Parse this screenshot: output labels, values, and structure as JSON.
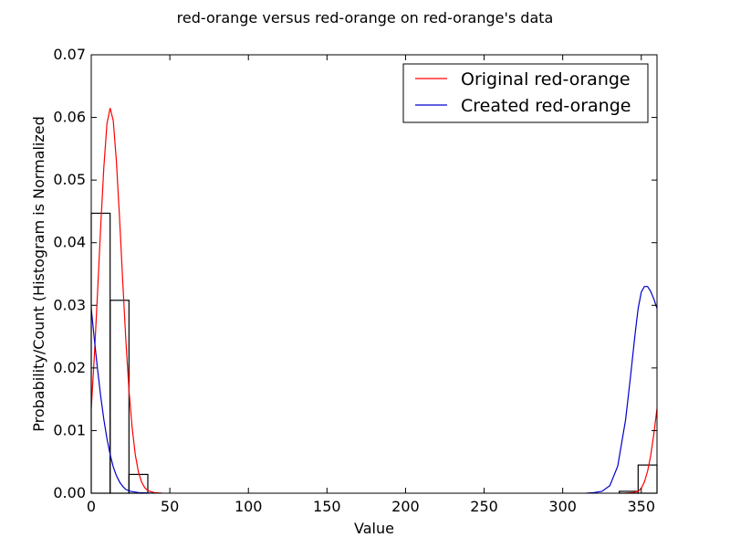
{
  "chart_data": {
    "type": "line",
    "title": "red-orange versus red-orange on red-orange's data",
    "xlabel": "Value",
    "ylabel": "Probability/Count (Histogram is Normalized",
    "xlim": [
      0,
      360
    ],
    "ylim": [
      0,
      0.07
    ],
    "xticks": [
      "0",
      "50",
      "100",
      "150",
      "200",
      "250",
      "300",
      "350"
    ],
    "yticks": [
      "0.00",
      "0.01",
      "0.02",
      "0.03",
      "0.04",
      "0.05",
      "0.06",
      "0.07"
    ],
    "grid": false,
    "legend_position": "top-right",
    "histogram": {
      "bin_width": 12,
      "bins": [
        {
          "x0": 0,
          "value": 0.0447
        },
        {
          "x0": 12,
          "value": 0.0308
        },
        {
          "x0": 24,
          "value": 0.003
        },
        {
          "x0": 336,
          "value": 0.0003
        },
        {
          "x0": 348,
          "value": 0.0045
        }
      ],
      "color": "#000000"
    },
    "series": [
      {
        "name": "Original red-orange",
        "color": "#ff0000",
        "points": [
          [
            0,
            0.0135
          ],
          [
            2,
            0.022
          ],
          [
            4,
            0.032
          ],
          [
            6,
            0.0425
          ],
          [
            8,
            0.052
          ],
          [
            10,
            0.059
          ],
          [
            12,
            0.0615
          ],
          [
            14,
            0.0595
          ],
          [
            16,
            0.053
          ],
          [
            18,
            0.044
          ],
          [
            20,
            0.034
          ],
          [
            22,
            0.0245
          ],
          [
            24,
            0.0165
          ],
          [
            26,
            0.0105
          ],
          [
            28,
            0.0062
          ],
          [
            30,
            0.0034
          ],
          [
            32,
            0.0018
          ],
          [
            34,
            0.0009
          ],
          [
            36,
            0.0004
          ],
          [
            40,
            0.0001
          ],
          [
            45,
            0
          ],
          [
            340,
            0
          ],
          [
            345,
            0.0001
          ],
          [
            348,
            0.0003
          ],
          [
            350,
            0.0008
          ],
          [
            352,
            0.0018
          ],
          [
            354,
            0.0035
          ],
          [
            356,
            0.006
          ],
          [
            358,
            0.0095
          ],
          [
            360,
            0.0135
          ]
        ]
      },
      {
        "name": "Created red-orange",
        "color": "#0000cc",
        "points": [
          [
            0,
            0.0295
          ],
          [
            2,
            0.0245
          ],
          [
            4,
            0.0198
          ],
          [
            6,
            0.0155
          ],
          [
            8,
            0.0118
          ],
          [
            10,
            0.0087
          ],
          [
            12,
            0.0062
          ],
          [
            14,
            0.0042
          ],
          [
            16,
            0.0028
          ],
          [
            18,
            0.0018
          ],
          [
            20,
            0.0011
          ],
          [
            22,
            0.0006
          ],
          [
            25,
            0.0003
          ],
          [
            30,
            0.0001
          ],
          [
            40,
            0
          ],
          [
            315,
            0
          ],
          [
            320,
            0.0001
          ],
          [
            325,
            0.0003
          ],
          [
            330,
            0.0012
          ],
          [
            335,
            0.0043
          ],
          [
            340,
            0.0117
          ],
          [
            343,
            0.0183
          ],
          [
            346,
            0.0253
          ],
          [
            348,
            0.0295
          ],
          [
            350,
            0.0321
          ],
          [
            352,
            0.033
          ],
          [
            354,
            0.033
          ],
          [
            356,
            0.0322
          ],
          [
            358,
            0.031
          ],
          [
            360,
            0.0295
          ]
        ]
      }
    ]
  }
}
